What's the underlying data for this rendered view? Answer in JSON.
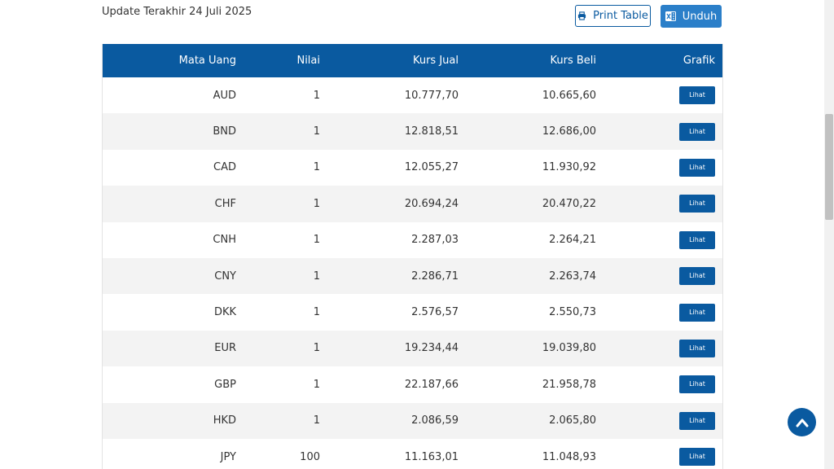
{
  "header": {
    "update_text": "Update Terakhir 24 Juli 2025",
    "print_label": "Print Table",
    "download_label": "Unduh"
  },
  "table": {
    "columns": [
      "Mata Uang",
      "Nilai",
      "Kurs Jual",
      "Kurs Beli",
      "Grafik"
    ],
    "rows": [
      {
        "currency": "AUD",
        "value": "1",
        "sell": "10.777,70",
        "buy": "10.665,60",
        "action": "Lihat"
      },
      {
        "currency": "BND",
        "value": "1",
        "sell": "12.818,51",
        "buy": "12.686,00",
        "action": "Lihat"
      },
      {
        "currency": "CAD",
        "value": "1",
        "sell": "12.055,27",
        "buy": "11.930,92",
        "action": "Lihat"
      },
      {
        "currency": "CHF",
        "value": "1",
        "sell": "20.694,24",
        "buy": "20.470,22",
        "action": "Lihat"
      },
      {
        "currency": "CNH",
        "value": "1",
        "sell": "2.287,03",
        "buy": "2.264,21",
        "action": "Lihat"
      },
      {
        "currency": "CNY",
        "value": "1",
        "sell": "2.286,71",
        "buy": "2.263,74",
        "action": "Lihat"
      },
      {
        "currency": "DKK",
        "value": "1",
        "sell": "2.576,57",
        "buy": "2.550,73",
        "action": "Lihat"
      },
      {
        "currency": "EUR",
        "value": "1",
        "sell": "19.234,44",
        "buy": "19.039,80",
        "action": "Lihat"
      },
      {
        "currency": "GBP",
        "value": "1",
        "sell": "22.187,66",
        "buy": "21.958,78",
        "action": "Lihat"
      },
      {
        "currency": "HKD",
        "value": "1",
        "sell": "2.086,59",
        "buy": "2.065,80",
        "action": "Lihat"
      },
      {
        "currency": "JPY",
        "value": "100",
        "sell": "11.163,01",
        "buy": "11.048,93",
        "action": "Lihat"
      }
    ]
  },
  "icons": {
    "print": "printer-icon",
    "download": "excel-icon",
    "scroll_top": "chevron-up-icon"
  },
  "colors": {
    "primary": "#0a5aa0",
    "button_blue": "#2b7fc9",
    "row_alt": "#f3f3f3"
  }
}
